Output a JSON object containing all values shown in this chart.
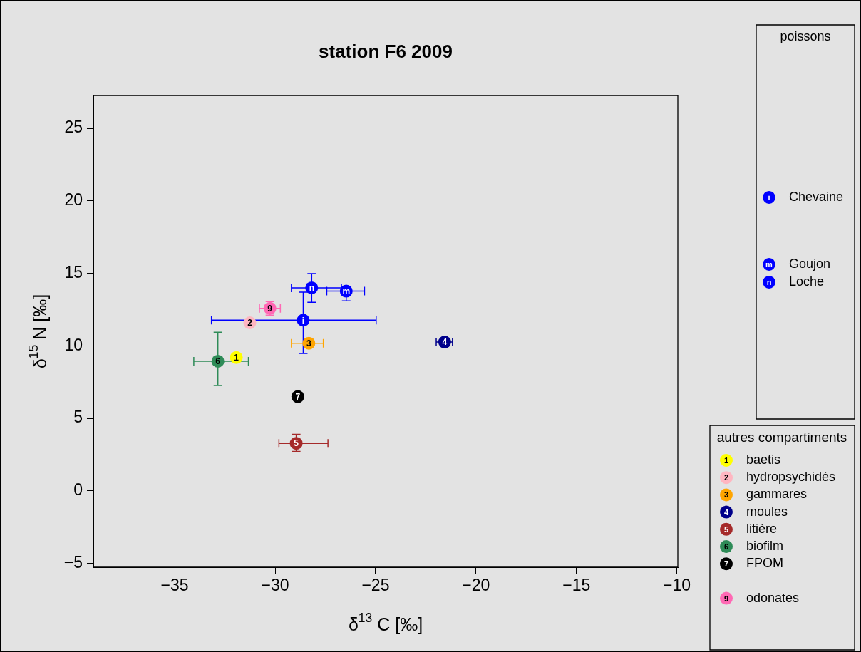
{
  "chart_data": {
    "type": "scatter",
    "title": "station F6 2009",
    "xlabel": "δ$^{13}$ C [‰]",
    "ylabel": "δ$^{15}$ N [‰]",
    "legend_title": "poissons",
    "annotations": [
      "autres compartiments",
      {
        "text": "i",
        "x": -28.6,
        "y": 11.77
      },
      {
        "text": "m",
        "x": -26.46,
        "y": 13.77
      },
      {
        "text": "n",
        "x": -28.18,
        "y": 14.0
      },
      {
        "text": "1",
        "x": -31.93,
        "y": 9.2
      },
      {
        "text": "2",
        "x": -31.26,
        "y": 11.59
      },
      {
        "text": "3",
        "x": -28.32,
        "y": 10.18
      },
      {
        "text": "4",
        "x": -21.56,
        "y": 10.26
      },
      {
        "text": "5",
        "x": -28.95,
        "y": 3.28
      },
      {
        "text": "6",
        "x": -32.85,
        "y": 8.94
      },
      {
        "text": "7",
        "x": -28.87,
        "y": 6.5
      },
      {
        "text": "9",
        "x": -30.26,
        "y": 12.59
      }
    ],
    "xlim": [
      -39.05,
      -9.95
    ],
    "ylim": [
      -5.26,
      27.26
    ],
    "xticks": [
      -35,
      -30,
      -25,
      -20,
      -15,
      -10
    ],
    "yticks": [
      -5,
      0,
      5,
      10,
      15,
      20,
      25
    ],
    "grid": false,
    "legend": "right",
    "marker": "circle",
    "series": [
      {
        "name": "Chevaine",
        "color": "#0000ff",
        "x": [
          -28.6
        ],
        "values": [
          11.77
        ],
        "xerrors": [
          [
            -33.17,
            -24.97
          ]
        ],
        "errors": [
          [
            9.48,
            13.7
          ]
        ]
      },
      {
        "name": "Goujon",
        "color": "#0000ff",
        "x": [
          -26.46
        ],
        "values": [
          13.77
        ],
        "xerrors": [
          [
            -27.43,
            -25.55
          ]
        ],
        "errors": [
          [
            13.1,
            14.1
          ]
        ]
      },
      {
        "name": "Loche",
        "color": "#0000ff",
        "x": [
          -28.18
        ],
        "values": [
          14.0
        ],
        "xerrors": [
          [
            -29.19,
            -26.7
          ]
        ],
        "errors": [
          [
            13.0,
            14.98
          ]
        ]
      },
      {
        "name": "baetis",
        "color": "#ffff00",
        "x": [
          -31.93
        ],
        "values": [
          9.2
        ]
      },
      {
        "name": "hydropsychidés",
        "color": "#ffb6c1",
        "x": [
          -31.26
        ],
        "values": [
          11.59
        ]
      },
      {
        "name": "gammares",
        "color": "#ffa500",
        "x": [
          -28.32
        ],
        "values": [
          10.18
        ],
        "xerrors": [
          [
            -29.19,
            -27.6
          ]
        ]
      },
      {
        "name": "moules",
        "color": "#00008b",
        "x": [
          -21.56
        ],
        "values": [
          10.26
        ],
        "xerrors": [
          [
            -21.98,
            -21.17
          ]
        ]
      },
      {
        "name": "litière",
        "color": "#a52a2a",
        "x": [
          -28.95
        ],
        "values": [
          3.28
        ],
        "xerrors": [
          [
            -29.81,
            -27.37
          ]
        ],
        "errors": [
          [
            2.72,
            3.9
          ]
        ]
      },
      {
        "name": "biofilm",
        "color": "#2e8b57",
        "x": [
          -32.85
        ],
        "values": [
          8.94
        ],
        "xerrors": [
          [
            -34.05,
            -31.33
          ]
        ],
        "errors": [
          [
            7.27,
            10.94
          ]
        ]
      },
      {
        "name": "FPOM",
        "color": "#000000",
        "x": [
          -28.87
        ],
        "values": [
          6.5
        ]
      },
      {
        "name": "odonates",
        "color": "#ff69b4",
        "x": [
          -30.26
        ],
        "values": [
          12.59
        ],
        "xerrors": [
          [
            -30.78,
            -29.74
          ]
        ],
        "errors": [
          [
            12.12,
            13.05
          ]
        ]
      }
    ]
  }
}
